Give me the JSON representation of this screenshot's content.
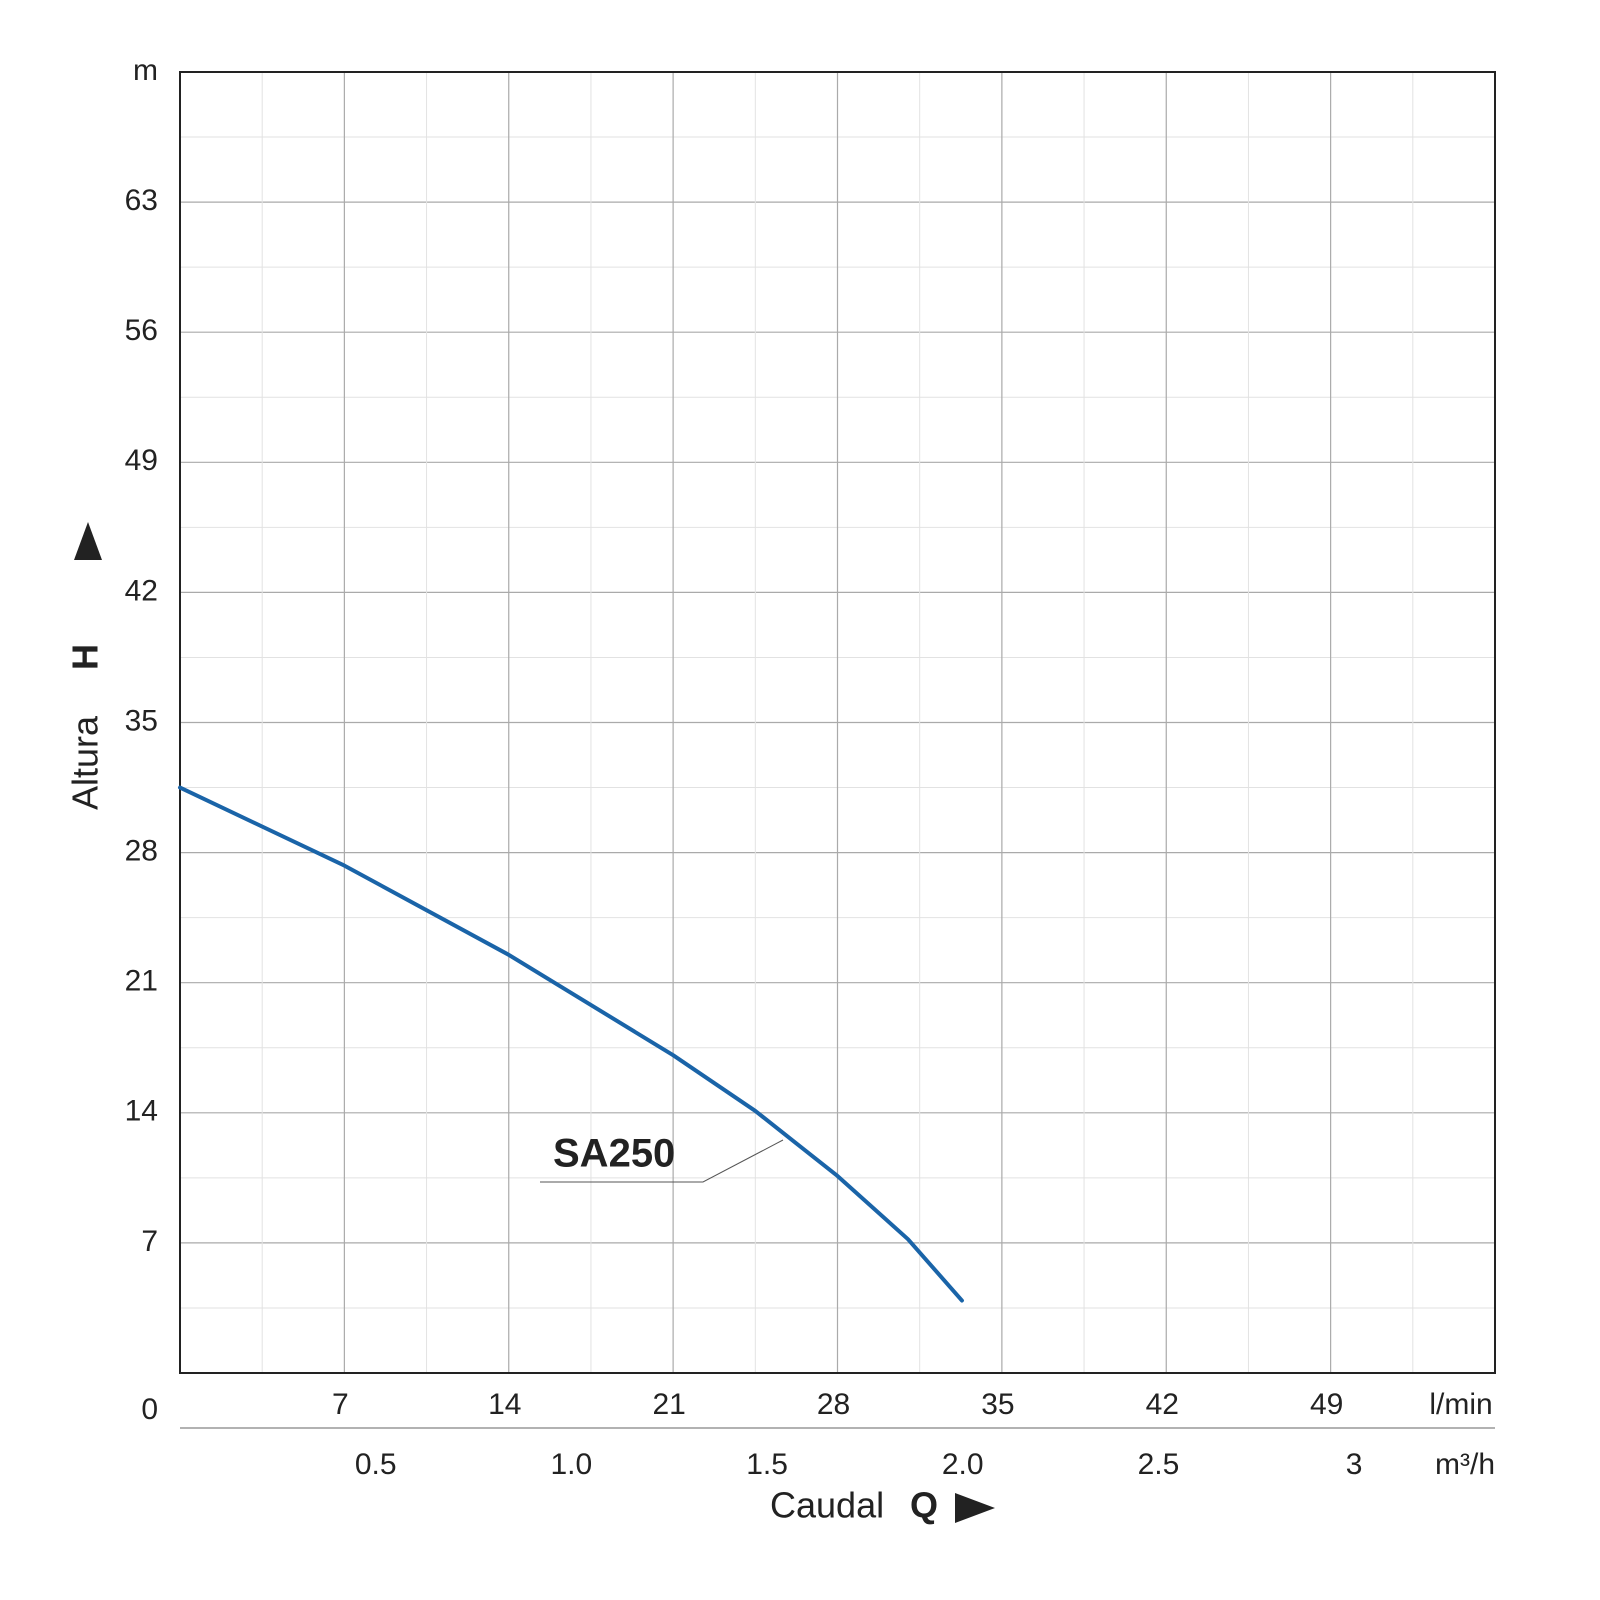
{
  "chart_data": {
    "type": "line",
    "xlabel": "Caudal",
    "xlabel_symbol": "Q",
    "ylabel": "Altura",
    "ylabel_symbol": "H",
    "xlim": [
      0,
      56
    ],
    "xticks": [
      7,
      14,
      21,
      28,
      35,
      42,
      49,
      {
        "value": 56,
        "label": "l/min"
      }
    ],
    "ylim": [
      0,
      70
    ],
    "yticks": [
      0,
      7,
      14,
      21,
      28,
      35,
      42,
      49,
      56,
      63,
      {
        "value": 70,
        "label": "m"
      }
    ],
    "x2lim": [
      0,
      3.36
    ],
    "x2ticks": [
      0.5,
      {
        "value": 1,
        "label": "1.0"
      },
      1.5,
      {
        "value": 2,
        "label": "2.0"
      },
      2.5,
      3
    ],
    "x2label": "m³/h",
    "grid": true,
    "x": [
      0,
      7,
      14,
      21,
      24.5,
      28,
      31,
      33.3
    ],
    "series": [
      {
        "name": "SA250",
        "color": "#1a64a8",
        "values": [
          31.5,
          27.3,
          22.5,
          17.1,
          14.1,
          10.6,
          7.2,
          3.9
        ]
      }
    ]
  }
}
